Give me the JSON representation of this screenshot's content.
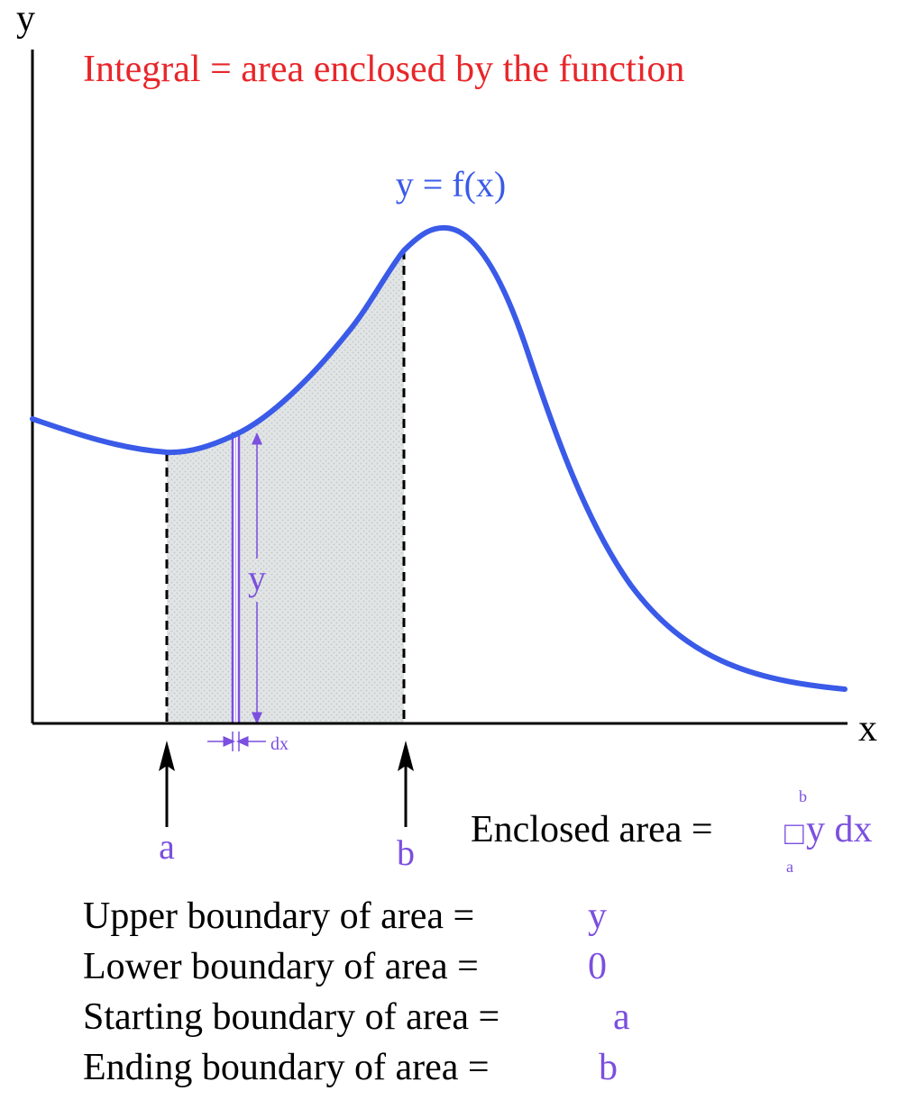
{
  "title": "Integral = area enclosed by the function",
  "axes": {
    "y_label": "y",
    "x_label": "x"
  },
  "curve_label": "y = f(x)",
  "strip": {
    "height_label": "y",
    "width_label": "dx"
  },
  "limits": {
    "a_label": "a",
    "b_label": "b"
  },
  "formula": {
    "prefix": "Enclosed area = ",
    "integral_symbol": "□",
    "upper": "b",
    "lower": "a",
    "integrand": "y dx"
  },
  "boundaries": [
    {
      "label": "Upper boundary of area =",
      "value": "y"
    },
    {
      "label": "Lower boundary of area =",
      "value": "0"
    },
    {
      "label": "Starting boundary of area =",
      "value": "a"
    },
    {
      "label": "Ending boundary of area =",
      "value": "b"
    }
  ],
  "colors": {
    "title": "#e8262a",
    "curve": "#3a5ae8",
    "accent": "#7b4fe0",
    "fill": "#d9dcdc",
    "axis": "#000000"
  }
}
